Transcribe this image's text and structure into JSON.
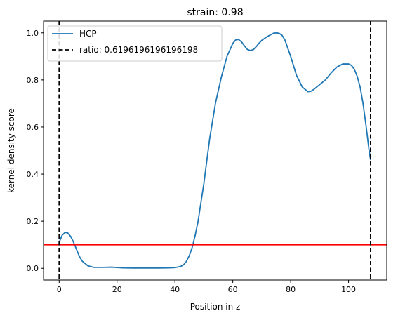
{
  "chart_data": {
    "type": "line",
    "title": "strain: 0.98",
    "xlabel": "Position in z",
    "ylabel": "kernel density score",
    "xlim": [
      -5.4,
      113.2
    ],
    "ylim": [
      -0.05,
      1.05
    ],
    "xticks": [
      0,
      20,
      40,
      60,
      80,
      100
    ],
    "yticks": [
      0.0,
      0.2,
      0.4,
      0.6,
      0.8,
      1.0
    ],
    "xtick_labels": [
      "0",
      "20",
      "40",
      "60",
      "80",
      "100"
    ],
    "ytick_labels": [
      "0.0",
      "0.2",
      "0.4",
      "0.6",
      "0.8",
      "1.0"
    ],
    "grid": false,
    "legend_position": "top-left",
    "series": [
      {
        "name": "HCP",
        "color": "#1f77b4",
        "style": "solid",
        "x": [
          0,
          1,
          2,
          3,
          4,
          5,
          6,
          7,
          8,
          10,
          12,
          15,
          18,
          22,
          26,
          30,
          34,
          38,
          40,
          42,
          43,
          44,
          45,
          46,
          47,
          48,
          50,
          52,
          54,
          56,
          58,
          60,
          61,
          62,
          63,
          64,
          65,
          66,
          67,
          68,
          69,
          70,
          72,
          74,
          75,
          76,
          77,
          78,
          80,
          82,
          84,
          86,
          87,
          88,
          90,
          92,
          94,
          96,
          98,
          100,
          101,
          102,
          103,
          104,
          105,
          106,
          107,
          107.6
        ],
        "y": [
          0.11,
          0.14,
          0.152,
          0.15,
          0.135,
          0.11,
          0.08,
          0.05,
          0.03,
          0.01,
          0.004,
          0.004,
          0.005,
          0.002,
          0.001,
          0.001,
          0.001,
          0.002,
          0.003,
          0.008,
          0.015,
          0.03,
          0.055,
          0.09,
          0.14,
          0.2,
          0.36,
          0.55,
          0.7,
          0.81,
          0.9,
          0.955,
          0.97,
          0.972,
          0.962,
          0.945,
          0.93,
          0.925,
          0.928,
          0.94,
          0.955,
          0.968,
          0.985,
          0.998,
          1.0,
          0.998,
          0.99,
          0.97,
          0.9,
          0.82,
          0.77,
          0.75,
          0.752,
          0.76,
          0.78,
          0.8,
          0.83,
          0.855,
          0.868,
          0.868,
          0.862,
          0.845,
          0.815,
          0.77,
          0.7,
          0.61,
          0.51,
          0.46
        ]
      },
      {
        "name": "ratio: 0.6196196196196198",
        "color": "#000000",
        "style": "dashed",
        "vertical_lines_x": [
          0,
          107.6
        ]
      },
      {
        "color": "#ff0000",
        "style": "solid",
        "horizontal_line_y": 0.1
      }
    ]
  }
}
